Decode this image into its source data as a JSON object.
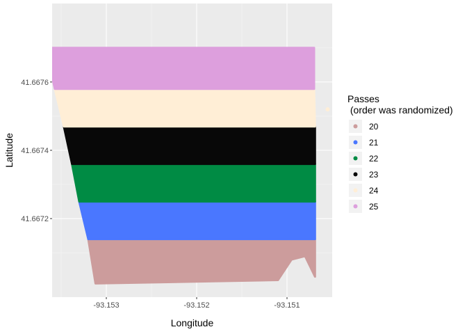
{
  "chart_data": {
    "type": "scatter",
    "xlabel": "Longitude",
    "ylabel": "Latitude",
    "xlim": [
      -93.1536,
      -93.1505
    ],
    "ylim": [
      41.66697,
      41.66783
    ],
    "x_ticks": [
      -93.153,
      -93.152,
      -93.151
    ],
    "x_tick_labels": [
      "-93.153",
      "-93.152",
      "-93.151"
    ],
    "y_ticks": [
      41.6672,
      41.6674,
      41.6676
    ],
    "y_tick_labels": [
      "41.6672",
      "41.6674",
      "41.6676"
    ],
    "grid": true,
    "legend": {
      "title_line1": "Passes",
      "title_line2": " (order was randomized)",
      "placement": "right"
    },
    "series": [
      {
        "name": "20",
        "color": "#cc9c9c",
        "region": [
          [
            -93.1532,
            41.66714
          ],
          [
            -93.15069,
            41.66714
          ],
          [
            -93.15069,
            41.66703
          ],
          [
            -93.1508,
            41.66709
          ],
          [
            -93.15095,
            41.66708
          ],
          [
            -93.1511,
            41.66702
          ],
          [
            -93.15312,
            41.66701
          ]
        ]
      },
      {
        "name": "21",
        "color": "#4a77ff",
        "region": [
          [
            -93.1533,
            41.66725
          ],
          [
            -93.15069,
            41.66725
          ],
          [
            -93.15069,
            41.66714
          ],
          [
            -93.1532,
            41.66714
          ]
        ]
      },
      {
        "name": "22",
        "color": "#008b44",
        "region": [
          [
            -93.15338,
            41.66736
          ],
          [
            -93.15069,
            41.66736
          ],
          [
            -93.15069,
            41.66725
          ],
          [
            -93.1533,
            41.66725
          ]
        ]
      },
      {
        "name": "23",
        "color": "#080808",
        "region": [
          [
            -93.15347,
            41.66747
          ],
          [
            -93.15069,
            41.66747
          ],
          [
            -93.15069,
            41.66736
          ],
          [
            -93.15338,
            41.66736
          ]
        ]
      },
      {
        "name": "24",
        "color": "#ffeed6",
        "region": [
          [
            -93.15357,
            41.66758
          ],
          [
            -93.1507,
            41.66758
          ],
          [
            -93.15069,
            41.66747
          ],
          [
            -93.15347,
            41.66747
          ]
        ],
        "extra_points": [
          [
            -93.15055,
            41.66752
          ]
        ]
      },
      {
        "name": "25",
        "color": "#dd9fdd",
        "region": [
          [
            -93.15367,
            41.6677
          ],
          [
            -93.1507,
            41.6677
          ],
          [
            -93.1507,
            41.66758
          ],
          [
            -93.15357,
            41.66758
          ]
        ]
      }
    ]
  }
}
